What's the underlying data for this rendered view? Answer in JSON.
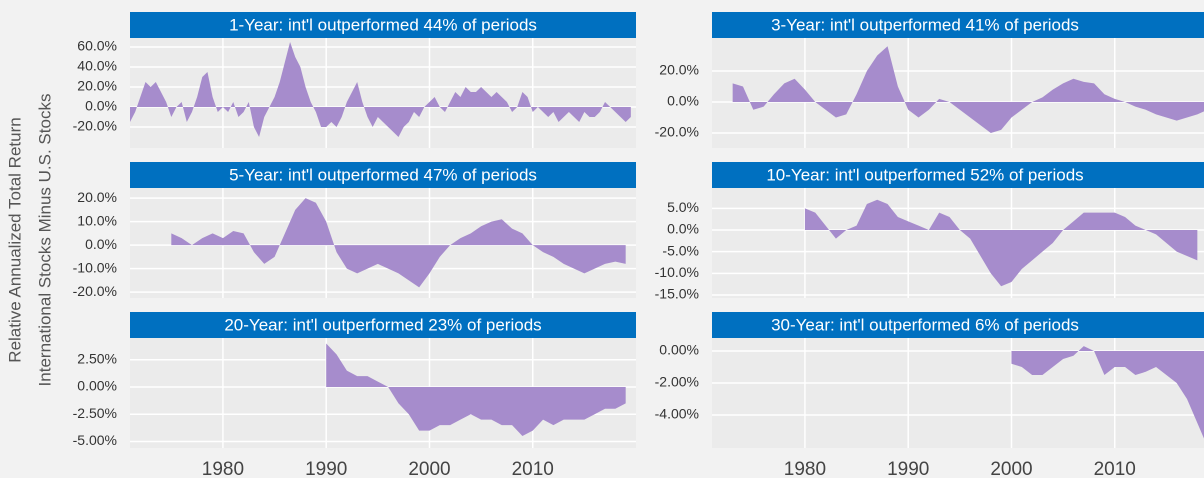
{
  "ylabel": [
    "Relative Annualized Total Return",
    "International Stocks Minus U.S. Stocks"
  ],
  "chart_data": [
    {
      "type": "area",
      "title": "1-Year: int'l outperformed 44% of periods",
      "color": "#a68ccc",
      "xlim": [
        1971,
        2020
      ],
      "xticks": [
        1980,
        1990,
        2000,
        2010
      ],
      "ylim": [
        -41,
        69
      ],
      "yticks": [
        {
          "value": 60,
          "label": "60.0%"
        },
        {
          "value": 40,
          "label": "40.0%"
        },
        {
          "value": 20,
          "label": "20.0%"
        },
        {
          "value": 0,
          "label": "0.0%"
        },
        {
          "value": -20,
          "label": "-20.0%"
        }
      ],
      "x": [
        1971,
        1971.5,
        1972,
        1972.5,
        1973,
        1973.5,
        1974,
        1974.5,
        1975,
        1975.5,
        1976,
        1976.5,
        1977,
        1977.5,
        1978,
        1978.5,
        1979,
        1979.5,
        1980,
        1980.5,
        1981,
        1981.5,
        1982,
        1982.5,
        1983,
        1983.5,
        1984,
        1984.5,
        1985,
        1985.5,
        1986,
        1986.5,
        1987,
        1987.5,
        1988,
        1988.5,
        1989,
        1989.5,
        1990,
        1990.5,
        1991,
        1991.5,
        1992,
        1992.5,
        1993,
        1993.5,
        1994,
        1994.5,
        1995,
        1995.5,
        1996,
        1996.5,
        1997,
        1997.5,
        1998,
        1998.5,
        1999,
        1999.5,
        2000,
        2000.5,
        2001,
        2001.5,
        2002,
        2002.5,
        2003,
        2003.5,
        2004,
        2004.5,
        2005,
        2005.5,
        2006,
        2006.5,
        2007,
        2007.5,
        2008,
        2008.5,
        2009,
        2009.5,
        2010,
        2010.5,
        2011,
        2011.5,
        2012,
        2012.5,
        2013,
        2013.5,
        2014,
        2014.5,
        2015,
        2015.5,
        2016,
        2016.5,
        2017,
        2017.5,
        2018,
        2018.5,
        2019,
        2019.5
      ],
      "values": [
        -15,
        -5,
        10,
        25,
        20,
        25,
        15,
        5,
        -10,
        0,
        5,
        -15,
        -5,
        10,
        30,
        35,
        10,
        -5,
        0,
        -5,
        5,
        -10,
        -5,
        5,
        -20,
        -30,
        -10,
        0,
        10,
        25,
        45,
        65,
        50,
        40,
        20,
        5,
        -5,
        -20,
        -20,
        -15,
        -20,
        -10,
        5,
        15,
        25,
        5,
        -10,
        -20,
        -10,
        -15,
        -20,
        -25,
        -30,
        -20,
        -15,
        -5,
        -10,
        0,
        5,
        10,
        0,
        -5,
        5,
        15,
        10,
        20,
        15,
        15,
        20,
        15,
        10,
        15,
        10,
        5,
        -5,
        0,
        15,
        10,
        -5,
        0,
        -5,
        -10,
        -5,
        -15,
        -10,
        -5,
        -10,
        -15,
        -5,
        -10,
        -10,
        -5,
        5,
        0,
        -5,
        -10,
        -15,
        -10
      ]
    },
    {
      "type": "area",
      "title": "3-Year: int'l outperformed 41% of periods",
      "color": "#a68ccc",
      "xlim": [
        1971,
        2020
      ],
      "xticks": [
        1980,
        1990,
        2000,
        2010
      ],
      "ylim": [
        -29.7,
        41.3
      ],
      "yticks": [
        {
          "value": 20,
          "label": "20.0%"
        },
        {
          "value": 0,
          "label": "0.0%"
        },
        {
          "value": -20,
          "label": "-20.0%"
        }
      ],
      "x": [
        1973,
        1974,
        1975,
        1976,
        1977,
        1978,
        1979,
        1980,
        1981,
        1982,
        1983,
        1984,
        1985,
        1986,
        1987,
        1988,
        1989,
        1990,
        1991,
        1992,
        1993,
        1994,
        1995,
        1996,
        1997,
        1998,
        1999,
        2000,
        2001,
        2002,
        2003,
        2004,
        2005,
        2006,
        2007,
        2008,
        2009,
        2010,
        2011,
        2012,
        2013,
        2014,
        2015,
        2016,
        2017,
        2018,
        2019,
        2020
      ],
      "values": [
        12,
        10,
        -5,
        -3,
        5,
        12,
        15,
        8,
        0,
        -5,
        -10,
        -8,
        5,
        20,
        30,
        36,
        10,
        -5,
        -10,
        -5,
        2,
        0,
        -5,
        -10,
        -15,
        -20,
        -18,
        -10,
        -5,
        0,
        3,
        8,
        12,
        15,
        13,
        12,
        5,
        2,
        0,
        -3,
        -5,
        -8,
        -10,
        -12,
        -10,
        -8,
        -5,
        -2
      ]
    },
    {
      "type": "area",
      "title": "5-Year: int'l outperformed 47% of periods",
      "color": "#a68ccc",
      "xlim": [
        1971,
        2020
      ],
      "xticks": [
        1980,
        1990,
        2000,
        2010
      ],
      "ylim": [
        -22.5,
        24.3
      ],
      "yticks": [
        {
          "value": 20,
          "label": "20.0%"
        },
        {
          "value": 10,
          "label": "10.0%"
        },
        {
          "value": 0,
          "label": "0.0%"
        },
        {
          "value": -10,
          "label": "-10.0%"
        },
        {
          "value": -20,
          "label": "-20.0%"
        }
      ],
      "x": [
        1975,
        1976,
        1977,
        1978,
        1979,
        1980,
        1981,
        1982,
        1983,
        1984,
        1985,
        1986,
        1987,
        1988,
        1989,
        1990,
        1991,
        1992,
        1993,
        1994,
        1995,
        1996,
        1997,
        1998,
        1999,
        2000,
        2001,
        2002,
        2003,
        2004,
        2005,
        2006,
        2007,
        2008,
        2009,
        2010,
        2011,
        2012,
        2013,
        2014,
        2015,
        2016,
        2017,
        2018,
        2019
      ],
      "values": [
        5,
        3,
        0,
        3,
        5,
        3,
        6,
        5,
        -3,
        -8,
        -5,
        5,
        15,
        20,
        18,
        10,
        -3,
        -10,
        -12,
        -10,
        -8,
        -10,
        -12,
        -15,
        -18,
        -12,
        -5,
        0,
        3,
        5,
        8,
        10,
        11,
        7,
        5,
        0,
        -3,
        -5,
        -8,
        -10,
        -12,
        -10,
        -8,
        -7,
        -8
      ]
    },
    {
      "type": "area",
      "title": "10-Year: int'l outperformed 52% of periods",
      "color": "#a68ccc",
      "xlim": [
        1971,
        2020
      ],
      "xticks": [
        1980,
        1990,
        2000,
        2010
      ],
      "ylim": [
        -15.7,
        9.7
      ],
      "yticks": [
        {
          "value": 5,
          "label": "5.0%"
        },
        {
          "value": 0,
          "label": "0.0%"
        },
        {
          "value": -5,
          "label": "-5.0%"
        },
        {
          "value": -10,
          "label": "-10.0%"
        },
        {
          "value": -15,
          "label": "-15.0%"
        }
      ],
      "x": [
        1980,
        1981,
        1982,
        1983,
        1984,
        1985,
        1986,
        1987,
        1988,
        1989,
        1990,
        1991,
        1992,
        1993,
        1994,
        1995,
        1996,
        1997,
        1998,
        1999,
        2000,
        2001,
        2002,
        2003,
        2004,
        2005,
        2006,
        2007,
        2008,
        2009,
        2010,
        2011,
        2012,
        2013,
        2014,
        2015,
        2016,
        2017,
        2018
      ],
      "values": [
        5,
        4,
        1,
        -2,
        0,
        1,
        6,
        7,
        6,
        3,
        2,
        1,
        0,
        4,
        3,
        0,
        -2,
        -6,
        -10,
        -13,
        -12,
        -9,
        -7,
        -5,
        -3,
        0,
        2,
        4,
        4,
        4,
        4,
        3,
        1,
        0,
        -1,
        -3,
        -5,
        -6,
        -7
      ]
    },
    {
      "type": "area",
      "title": "20-Year: int'l outperformed 23% of periods",
      "color": "#a68ccc",
      "xlim": [
        1971,
        2020
      ],
      "xticks": [
        1980,
        1990,
        2000,
        2010
      ],
      "ylim": [
        -5.6,
        4.5
      ],
      "yticks": [
        {
          "value": 2.5,
          "label": "2.50%"
        },
        {
          "value": 0,
          "label": "0.00%"
        },
        {
          "value": -2.5,
          "label": "-2.50%"
        },
        {
          "value": -5,
          "label": "-5.00%"
        }
      ],
      "x": [
        1990,
        1991,
        1992,
        1993,
        1994,
        1995,
        1996,
        1997,
        1998,
        1999,
        2000,
        2001,
        2002,
        2003,
        2004,
        2005,
        2006,
        2007,
        2008,
        2009,
        2010,
        2011,
        2012,
        2013,
        2014,
        2015,
        2016,
        2017,
        2018,
        2019
      ],
      "values": [
        4,
        3,
        1.5,
        1,
        1,
        0.5,
        0,
        -1.5,
        -2.5,
        -4,
        -4,
        -3.5,
        -3.5,
        -3,
        -2.5,
        -3,
        -3,
        -3.5,
        -3.5,
        -4.5,
        -4,
        -3,
        -3.5,
        -3,
        -3,
        -3,
        -2.5,
        -2,
        -2,
        -1.5
      ]
    },
    {
      "type": "area",
      "title": "30-Year: int'l outperformed  6% of periods",
      "color": "#a68ccc",
      "xlim": [
        1971,
        2020
      ],
      "xticks": [
        1980,
        1990,
        2000,
        2010
      ],
      "ylim": [
        -6.06,
        0.81
      ],
      "yticks": [
        {
          "value": 0,
          "label": "0.00%"
        },
        {
          "value": -2,
          "label": "-2.00%"
        },
        {
          "value": -4,
          "label": "-4.00%"
        }
      ],
      "x": [
        2000,
        2001,
        2002,
        2003,
        2004,
        2005,
        2006,
        2007,
        2008,
        2009,
        2010,
        2011,
        2012,
        2013,
        2014,
        2015,
        2016,
        2017,
        2018,
        2019
      ],
      "values": [
        -0.8,
        -1,
        -1.5,
        -1.5,
        -1,
        -0.5,
        -0.3,
        0.3,
        0,
        -1.5,
        -1,
        -1,
        -1.5,
        -1.3,
        -1,
        -1.5,
        -2,
        -3,
        -4.5,
        -6
      ]
    }
  ]
}
